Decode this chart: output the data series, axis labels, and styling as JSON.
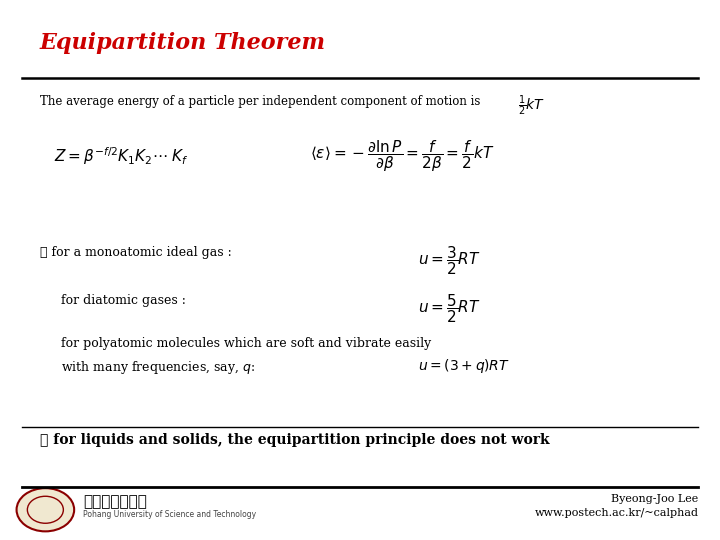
{
  "background_color": "#ffffff",
  "title": "Equipartition Theorem",
  "title_color": "#cc0000",
  "title_fontsize": 16,
  "subtitle": "The average energy of a particle per independent component of motion is",
  "subtitle_formula": "$\\frac{1}{2}kT$",
  "main_formula_left": "$Z = \\beta^{-f/2} K_1 K_2 \\cdots \\; K_f$",
  "main_formula_right": "$\\langle \\varepsilon \\rangle = -\\dfrac{\\partial \\ln P}{\\partial \\beta} = \\dfrac{f}{2\\beta} = \\dfrac{f}{2}kT$",
  "item1_text": "※ for a monoatomic ideal gas :",
  "item1_formula": "$u = \\dfrac{3}{2}RT$",
  "item2_text": "for diatomic gases :",
  "item2_formula": "$u = \\dfrac{5}{2}RT$",
  "item3_text1": "for polyatomic molecules which are soft and vibrate easily",
  "item3_text2": "with many frequencies, say, $q$:",
  "item3_formula": "$u = (3+q)RT$",
  "footer_bold": "※ for liquids and solids, the equipartition principle does not work",
  "credit_line1": "Byeong-Joo Lee",
  "credit_line2": "www.postech.ac.kr/~calphad",
  "logo_text": "포항공과대학교"
}
